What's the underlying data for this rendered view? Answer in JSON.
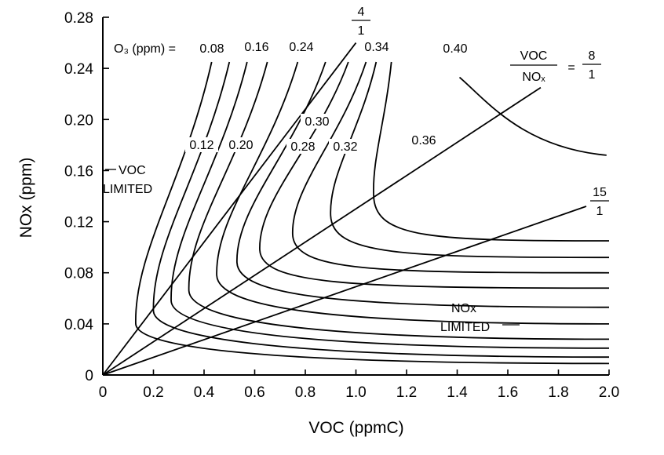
{
  "chart_data": {
    "type": "line",
    "title": "",
    "xlabel": "VOC (ppmC)",
    "ylabel": "NOx (ppm)",
    "xlim": [
      0,
      2.0
    ],
    "ylim": [
      0,
      0.28
    ],
    "x_ticks": [
      "0",
      "0.2",
      "0.4",
      "0.6",
      "0.8",
      "1.0",
      "1.2",
      "1.4",
      "1.6",
      "1.8",
      "2.0"
    ],
    "y_ticks": [
      "0",
      "0.04",
      "0.08",
      "0.12",
      "0.16",
      "0.20",
      "0.24",
      "0.28"
    ],
    "grid": false,
    "o3_prefix": "O₃ (ppm) =",
    "isopleths": [
      {
        "label": "0.08",
        "apex": [
          0.13,
          0.04
        ],
        "xmax": 2.0,
        "yasym": 0.009,
        "top_x": 0.43
      },
      {
        "label": "0.12",
        "apex": [
          0.2,
          0.05
        ],
        "xmax": 2.0,
        "yasym": 0.014,
        "top_x": 0.5
      },
      {
        "label": "0.16",
        "apex": [
          0.27,
          0.058
        ],
        "xmax": 2.0,
        "yasym": 0.021,
        "top_x": 0.57
      },
      {
        "label": "0.20",
        "apex": [
          0.34,
          0.066
        ],
        "xmax": 2.0,
        "yasym": 0.028,
        "top_x": 0.65
      },
      {
        "label": "0.24",
        "apex": [
          0.45,
          0.078
        ],
        "xmax": 2.0,
        "yasym": 0.04,
        "top_x": 0.77
      },
      {
        "label": "0.28",
        "apex": [
          0.53,
          0.088
        ],
        "xmax": 2.0,
        "yasym": 0.053,
        "top_x": 0.88
      },
      {
        "label": "0.30",
        "apex": [
          0.62,
          0.098
        ],
        "xmax": 2.0,
        "yasym": 0.068,
        "top_x": 0.97
      },
      {
        "label": "0.32",
        "apex": [
          0.75,
          0.11
        ],
        "xmax": 2.0,
        "yasym": 0.08,
        "top_x": 1.04
      },
      {
        "label": "0.34",
        "apex": [
          0.9,
          0.125
        ],
        "xmax": 2.0,
        "yasym": 0.092,
        "top_x": 1.08
      },
      {
        "label": "0.36",
        "apex": [
          1.07,
          0.14
        ],
        "xmax": 2.0,
        "yasym": 0.105,
        "top_x": 1.14
      },
      {
        "label": "0.40",
        "apex": [
          1.4,
          0.185
        ],
        "xmax": 1.99,
        "yasym": 0.172,
        "top_x": 1.4
      }
    ],
    "ratio_lines": [
      {
        "name": "4/1",
        "num": "4",
        "den": "1",
        "end": [
          1.0,
          0.26
        ]
      },
      {
        "name": "8/1",
        "num": "8",
        "den": "1",
        "end": [
          1.73,
          0.225
        ]
      },
      {
        "name": "15/1",
        "num": "15",
        "den": "1",
        "end": [
          1.91,
          0.132
        ]
      }
    ],
    "ratio_title_num": "VOC",
    "ratio_title_den": "NOₓ",
    "ratio_eq": "=",
    "annotations": [
      {
        "id": "voc_limited",
        "lines": [
          "VOC",
          "LIMITED"
        ]
      },
      {
        "id": "nox_limited",
        "lines": [
          "NOx",
          "LIMITED"
        ]
      }
    ]
  }
}
